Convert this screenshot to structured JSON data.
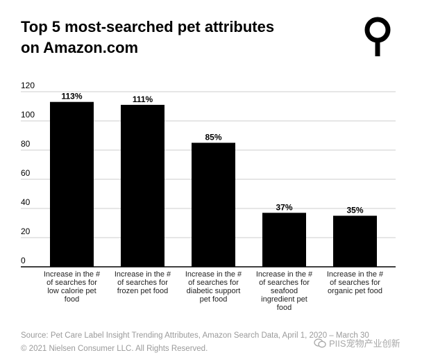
{
  "title_line1": "Top 5 most-searched pet attributes",
  "title_line2": "on Amazon.com",
  "footer": {
    "source": "Source: Pet Care Label Insight Trending Attributes, Amazon Search Data, April 1, 2020 – March 30",
    "copyright": "© 2021 Nielsen Consumer LLC. All Rights Reserved."
  },
  "watermark": "PIIS宠物产业创新",
  "colors": {
    "bar": "#000000",
    "grid": "#cccccc",
    "axis": "#000000",
    "text": "#000000",
    "footer": "#9a9a9a"
  },
  "chart_data": {
    "type": "bar",
    "title": "Top 5 most-searched pet attributes on Amazon.com",
    "categories": [
      [
        "Increase in the #",
        "of searches for",
        "low calorie pet",
        "food"
      ],
      [
        "Increase in the #",
        "of searches for",
        "frozen pet food"
      ],
      [
        "Increase in the #",
        "of searches for",
        "diabetic support",
        "pet food"
      ],
      [
        "Increase in the #",
        "of searches for",
        "seafood",
        "ingredient pet",
        "food"
      ],
      [
        "Increase in the #",
        "of searches for",
        "organic pet food"
      ]
    ],
    "values": [
      113,
      111,
      85,
      37,
      35
    ],
    "data_labels": [
      "113%",
      "111%",
      "85%",
      "37%",
      "35%"
    ],
    "y_ticks": [
      0,
      20,
      40,
      60,
      80,
      100,
      120
    ],
    "ylim": [
      0,
      120
    ],
    "grid": true,
    "xlabel": "",
    "ylabel": ""
  }
}
